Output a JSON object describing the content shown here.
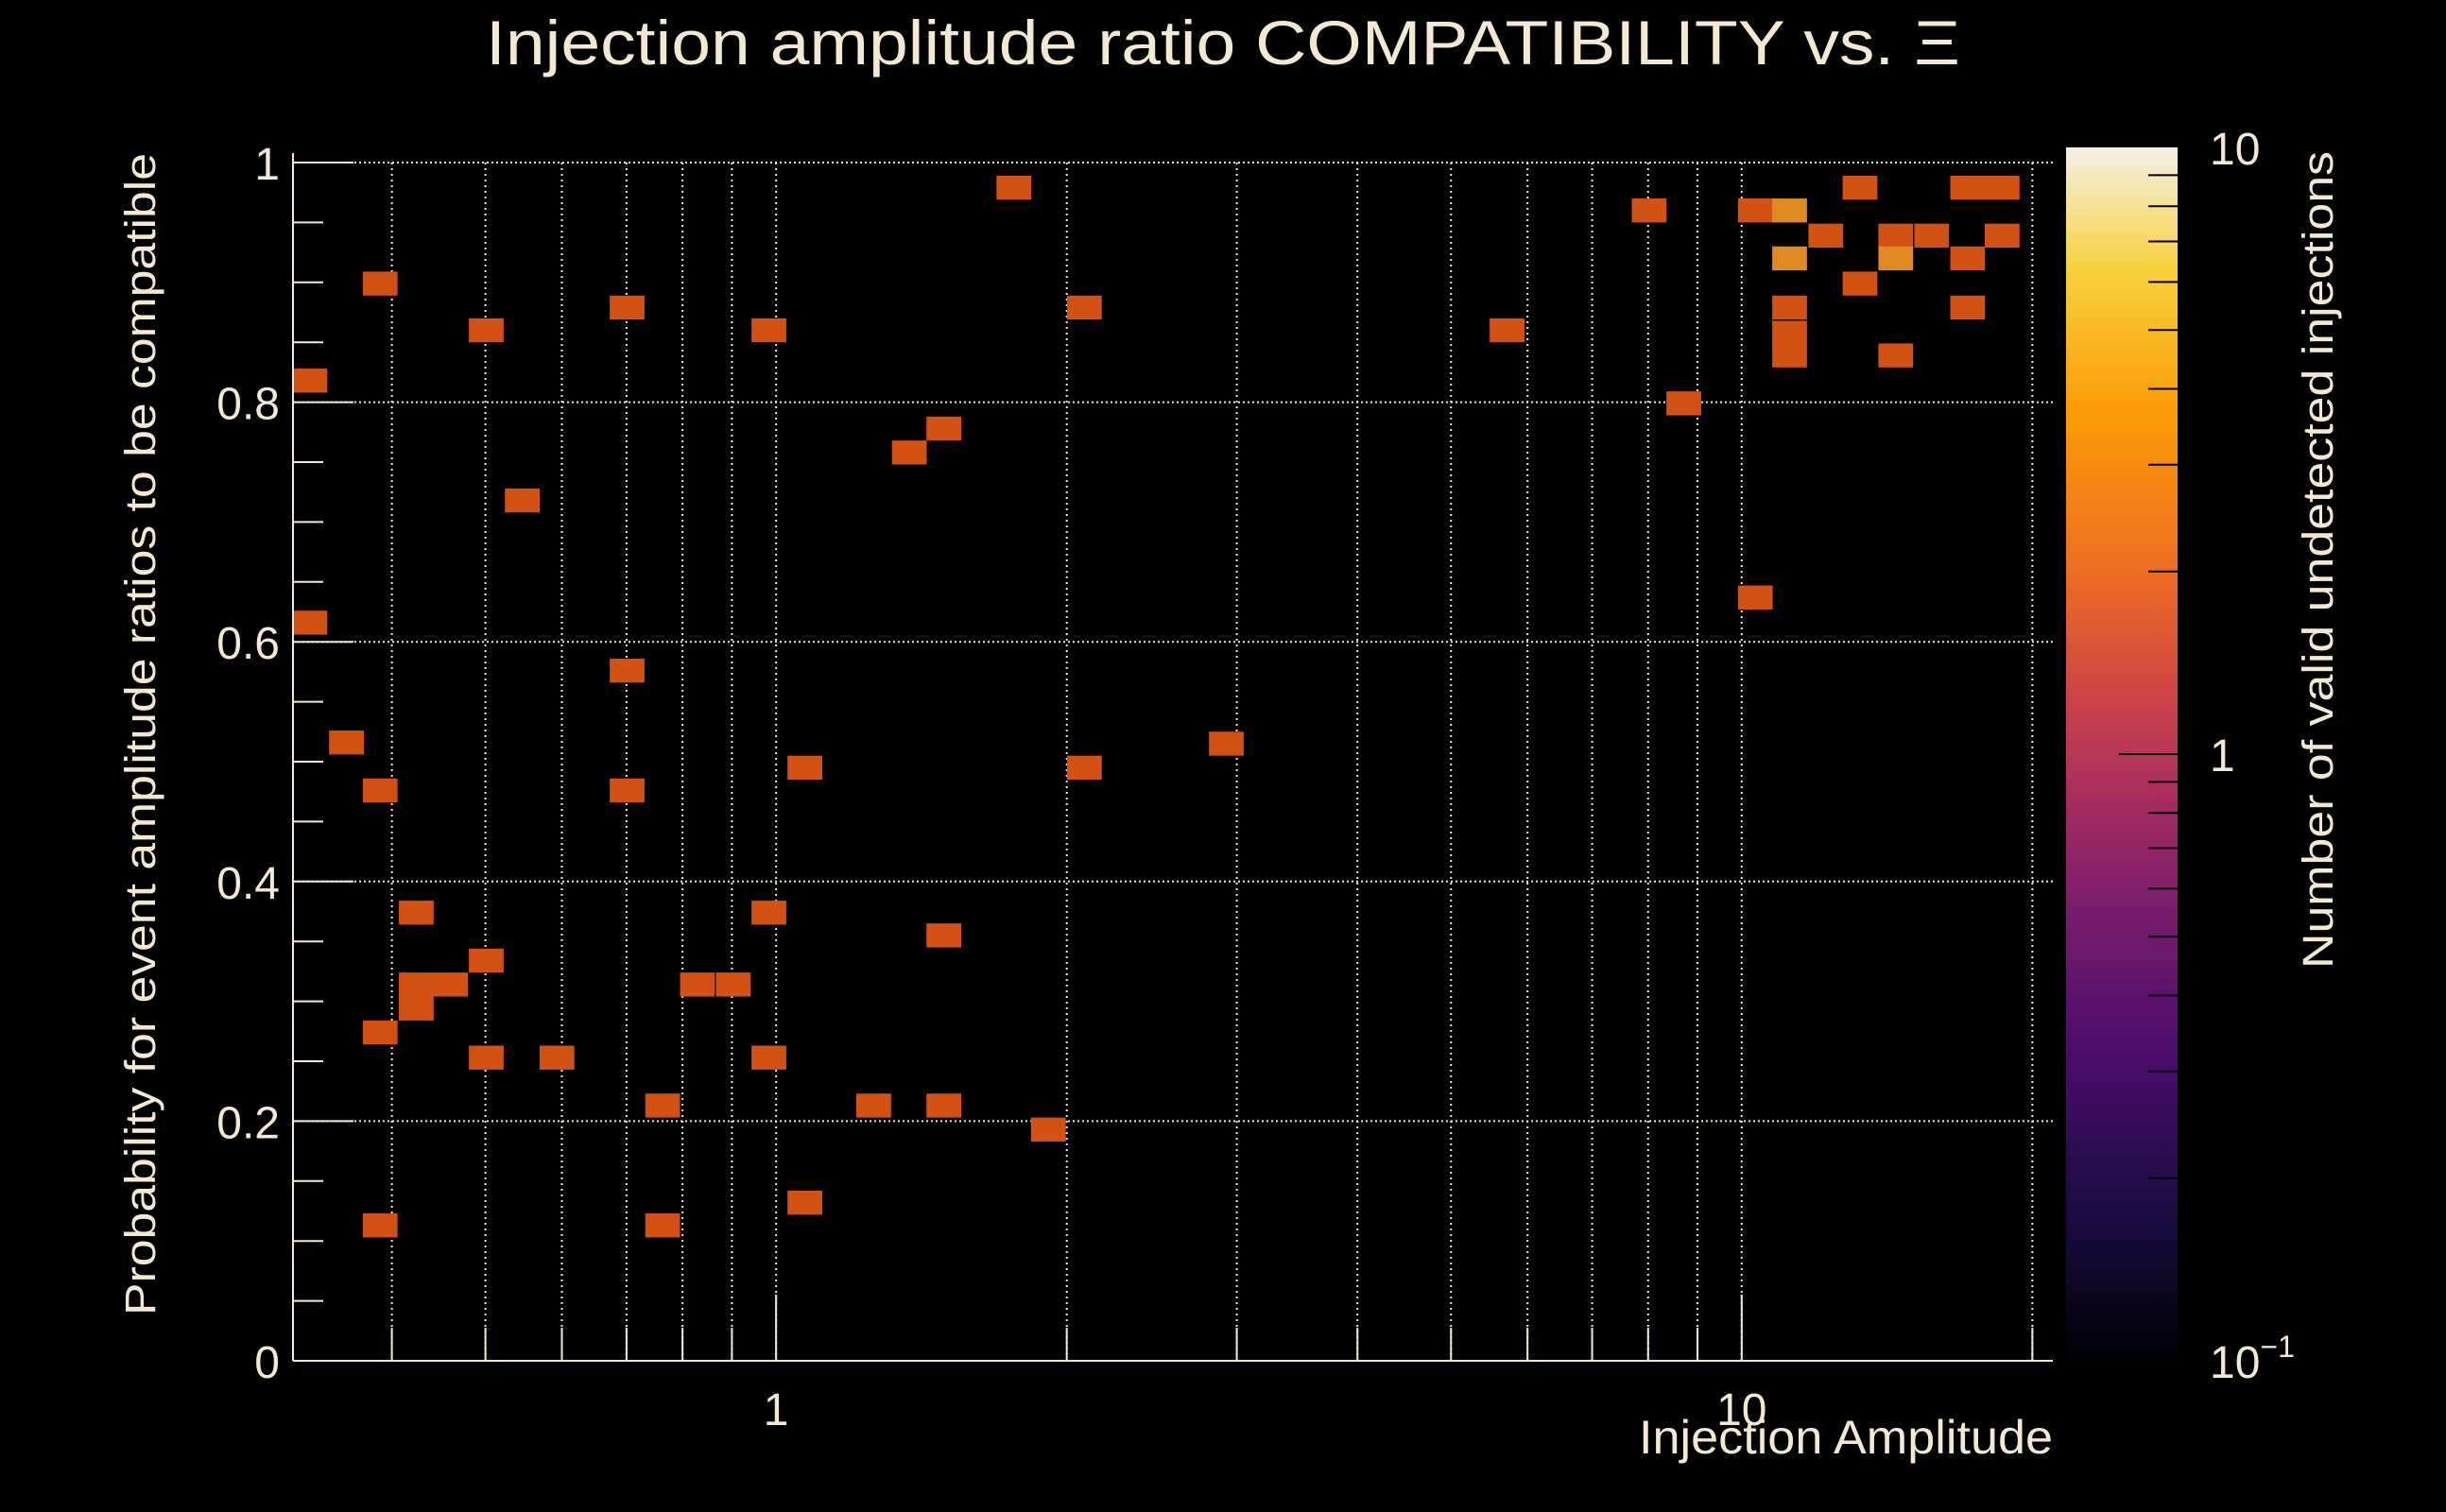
{
  "chart_data": {
    "type": "heatmap",
    "title": "Injection amplitude ratio COMPATIBILITY vs.  Ξ",
    "xlabel": "Injection Amplitude",
    "ylabel": "Probability for event amplitude ratios to be compatible",
    "zlabel": "Number of valid undetected injections",
    "xscale": "log",
    "yscale": "linear",
    "zscale": "log",
    "xlim": [
      0.316,
      21.0
    ],
    "ylim": [
      0,
      1
    ],
    "zlim": [
      0.1,
      10
    ],
    "x_tick_labels": [
      {
        "value": 1,
        "label": "1"
      },
      {
        "value": 10,
        "label": "10"
      }
    ],
    "x_gridlines": [
      0.4,
      0.5,
      0.6,
      0.7,
      0.8,
      0.9,
      1,
      2,
      3,
      4,
      5,
      6,
      7,
      8,
      9,
      10,
      20
    ],
    "y_tick_labels": [
      {
        "value": 0,
        "label": "0"
      },
      {
        "value": 0.2,
        "label": "0.2"
      },
      {
        "value": 0.4,
        "label": "0.4"
      },
      {
        "value": 0.6,
        "label": "0.6"
      },
      {
        "value": 0.8,
        "label": "0.8"
      },
      {
        "value": 1,
        "label": "1"
      }
    ],
    "y_minor_step": 0.05,
    "z_tick_labels": [
      {
        "value": 0.1,
        "label": "10",
        "exp": "−1"
      },
      {
        "value": 1,
        "label": "1",
        "exp": ""
      },
      {
        "value": 10,
        "label": "10",
        "exp": ""
      }
    ],
    "grid": true,
    "colormap": [
      "#000004",
      "#1b0c41",
      "#4a0c6b",
      "#781c6d",
      "#a52c60",
      "#cf4446",
      "#ed6925",
      "#fb9b06",
      "#f7d13d",
      "#f6f0e8"
    ],
    "colormap_stops": [
      0,
      0.12,
      0.25,
      0.37,
      0.46,
      0.55,
      0.64,
      0.78,
      0.9,
      1.0
    ],
    "cell_height": 0.02,
    "cell_log_width": 0.036,
    "cells": [
      {
        "x": 0.329,
        "y": 0.818,
        "z": 1
      },
      {
        "x": 0.389,
        "y": 0.899,
        "z": 1
      },
      {
        "x": 0.501,
        "y": 0.86,
        "z": 1
      },
      {
        "x": 0.546,
        "y": 0.718,
        "z": 1
      },
      {
        "x": 0.701,
        "y": 0.879,
        "z": 1
      },
      {
        "x": 0.983,
        "y": 0.86,
        "z": 1
      },
      {
        "x": 1.763,
        "y": 0.979,
        "z": 1
      },
      {
        "x": 0.329,
        "y": 0.616,
        "z": 1
      },
      {
        "x": 0.359,
        "y": 0.516,
        "z": 1
      },
      {
        "x": 0.389,
        "y": 0.476,
        "z": 1
      },
      {
        "x": 0.701,
        "y": 0.576,
        "z": 1
      },
      {
        "x": 0.701,
        "y": 0.476,
        "z": 1
      },
      {
        "x": 1.071,
        "y": 0.495,
        "z": 1
      },
      {
        "x": 1.374,
        "y": 0.758,
        "z": 1
      },
      {
        "x": 1.492,
        "y": 0.778,
        "z": 1
      },
      {
        "x": 2.086,
        "y": 0.879,
        "z": 1
      },
      {
        "x": 2.086,
        "y": 0.495,
        "z": 1
      },
      {
        "x": 2.926,
        "y": 0.515,
        "z": 1
      },
      {
        "x": 0.424,
        "y": 0.374,
        "z": 1
      },
      {
        "x": 0.501,
        "y": 0.334,
        "z": 1
      },
      {
        "x": 0.424,
        "y": 0.314,
        "z": 1
      },
      {
        "x": 0.46,
        "y": 0.314,
        "z": 1
      },
      {
        "x": 0.424,
        "y": 0.294,
        "z": 1
      },
      {
        "x": 0.389,
        "y": 0.274,
        "z": 1
      },
      {
        "x": 0.501,
        "y": 0.253,
        "z": 1
      },
      {
        "x": 0.593,
        "y": 0.253,
        "z": 1
      },
      {
        "x": 0.829,
        "y": 0.314,
        "z": 1
      },
      {
        "x": 0.903,
        "y": 0.314,
        "z": 1
      },
      {
        "x": 0.983,
        "y": 0.374,
        "z": 1
      },
      {
        "x": 0.983,
        "y": 0.253,
        "z": 1
      },
      {
        "x": 0.763,
        "y": 0.213,
        "z": 1
      },
      {
        "x": 1.262,
        "y": 0.213,
        "z": 1
      },
      {
        "x": 1.492,
        "y": 0.355,
        "z": 1
      },
      {
        "x": 1.492,
        "y": 0.213,
        "z": 1
      },
      {
        "x": 1.914,
        "y": 0.193,
        "z": 1
      },
      {
        "x": 0.389,
        "y": 0.113,
        "z": 1
      },
      {
        "x": 0.763,
        "y": 0.113,
        "z": 1
      },
      {
        "x": 1.071,
        "y": 0.132,
        "z": 1
      },
      {
        "x": 5.715,
        "y": 0.86,
        "z": 1
      },
      {
        "x": 8.02,
        "y": 0.96,
        "z": 1
      },
      {
        "x": 8.71,
        "y": 0.799,
        "z": 1
      },
      {
        "x": 10.33,
        "y": 0.637,
        "z": 1
      },
      {
        "x": 10.33,
        "y": 0.96,
        "z": 1
      },
      {
        "x": 11.21,
        "y": 0.96,
        "z": 2
      },
      {
        "x": 11.21,
        "y": 0.92,
        "z": 2
      },
      {
        "x": 12.22,
        "y": 0.939,
        "z": 1
      },
      {
        "x": 11.21,
        "y": 0.879,
        "z": 1
      },
      {
        "x": 11.21,
        "y": 0.858,
        "z": 1
      },
      {
        "x": 11.21,
        "y": 0.839,
        "z": 1
      },
      {
        "x": 13.26,
        "y": 0.979,
        "z": 1
      },
      {
        "x": 13.26,
        "y": 0.899,
        "z": 1
      },
      {
        "x": 14.44,
        "y": 0.939,
        "z": 1
      },
      {
        "x": 14.44,
        "y": 0.92,
        "z": 2
      },
      {
        "x": 15.73,
        "y": 0.939,
        "z": 1
      },
      {
        "x": 14.44,
        "y": 0.839,
        "z": 1
      },
      {
        "x": 17.14,
        "y": 0.979,
        "z": 1
      },
      {
        "x": 18.61,
        "y": 0.979,
        "z": 1
      },
      {
        "x": 17.14,
        "y": 0.92,
        "z": 1
      },
      {
        "x": 18.61,
        "y": 0.939,
        "z": 1
      },
      {
        "x": 17.14,
        "y": 0.879,
        "z": 1
      }
    ]
  },
  "colors": {
    "background": "#000000",
    "foreground": "#f3e9d2",
    "count_1": "#d35113",
    "count_2": "#e08a22"
  }
}
